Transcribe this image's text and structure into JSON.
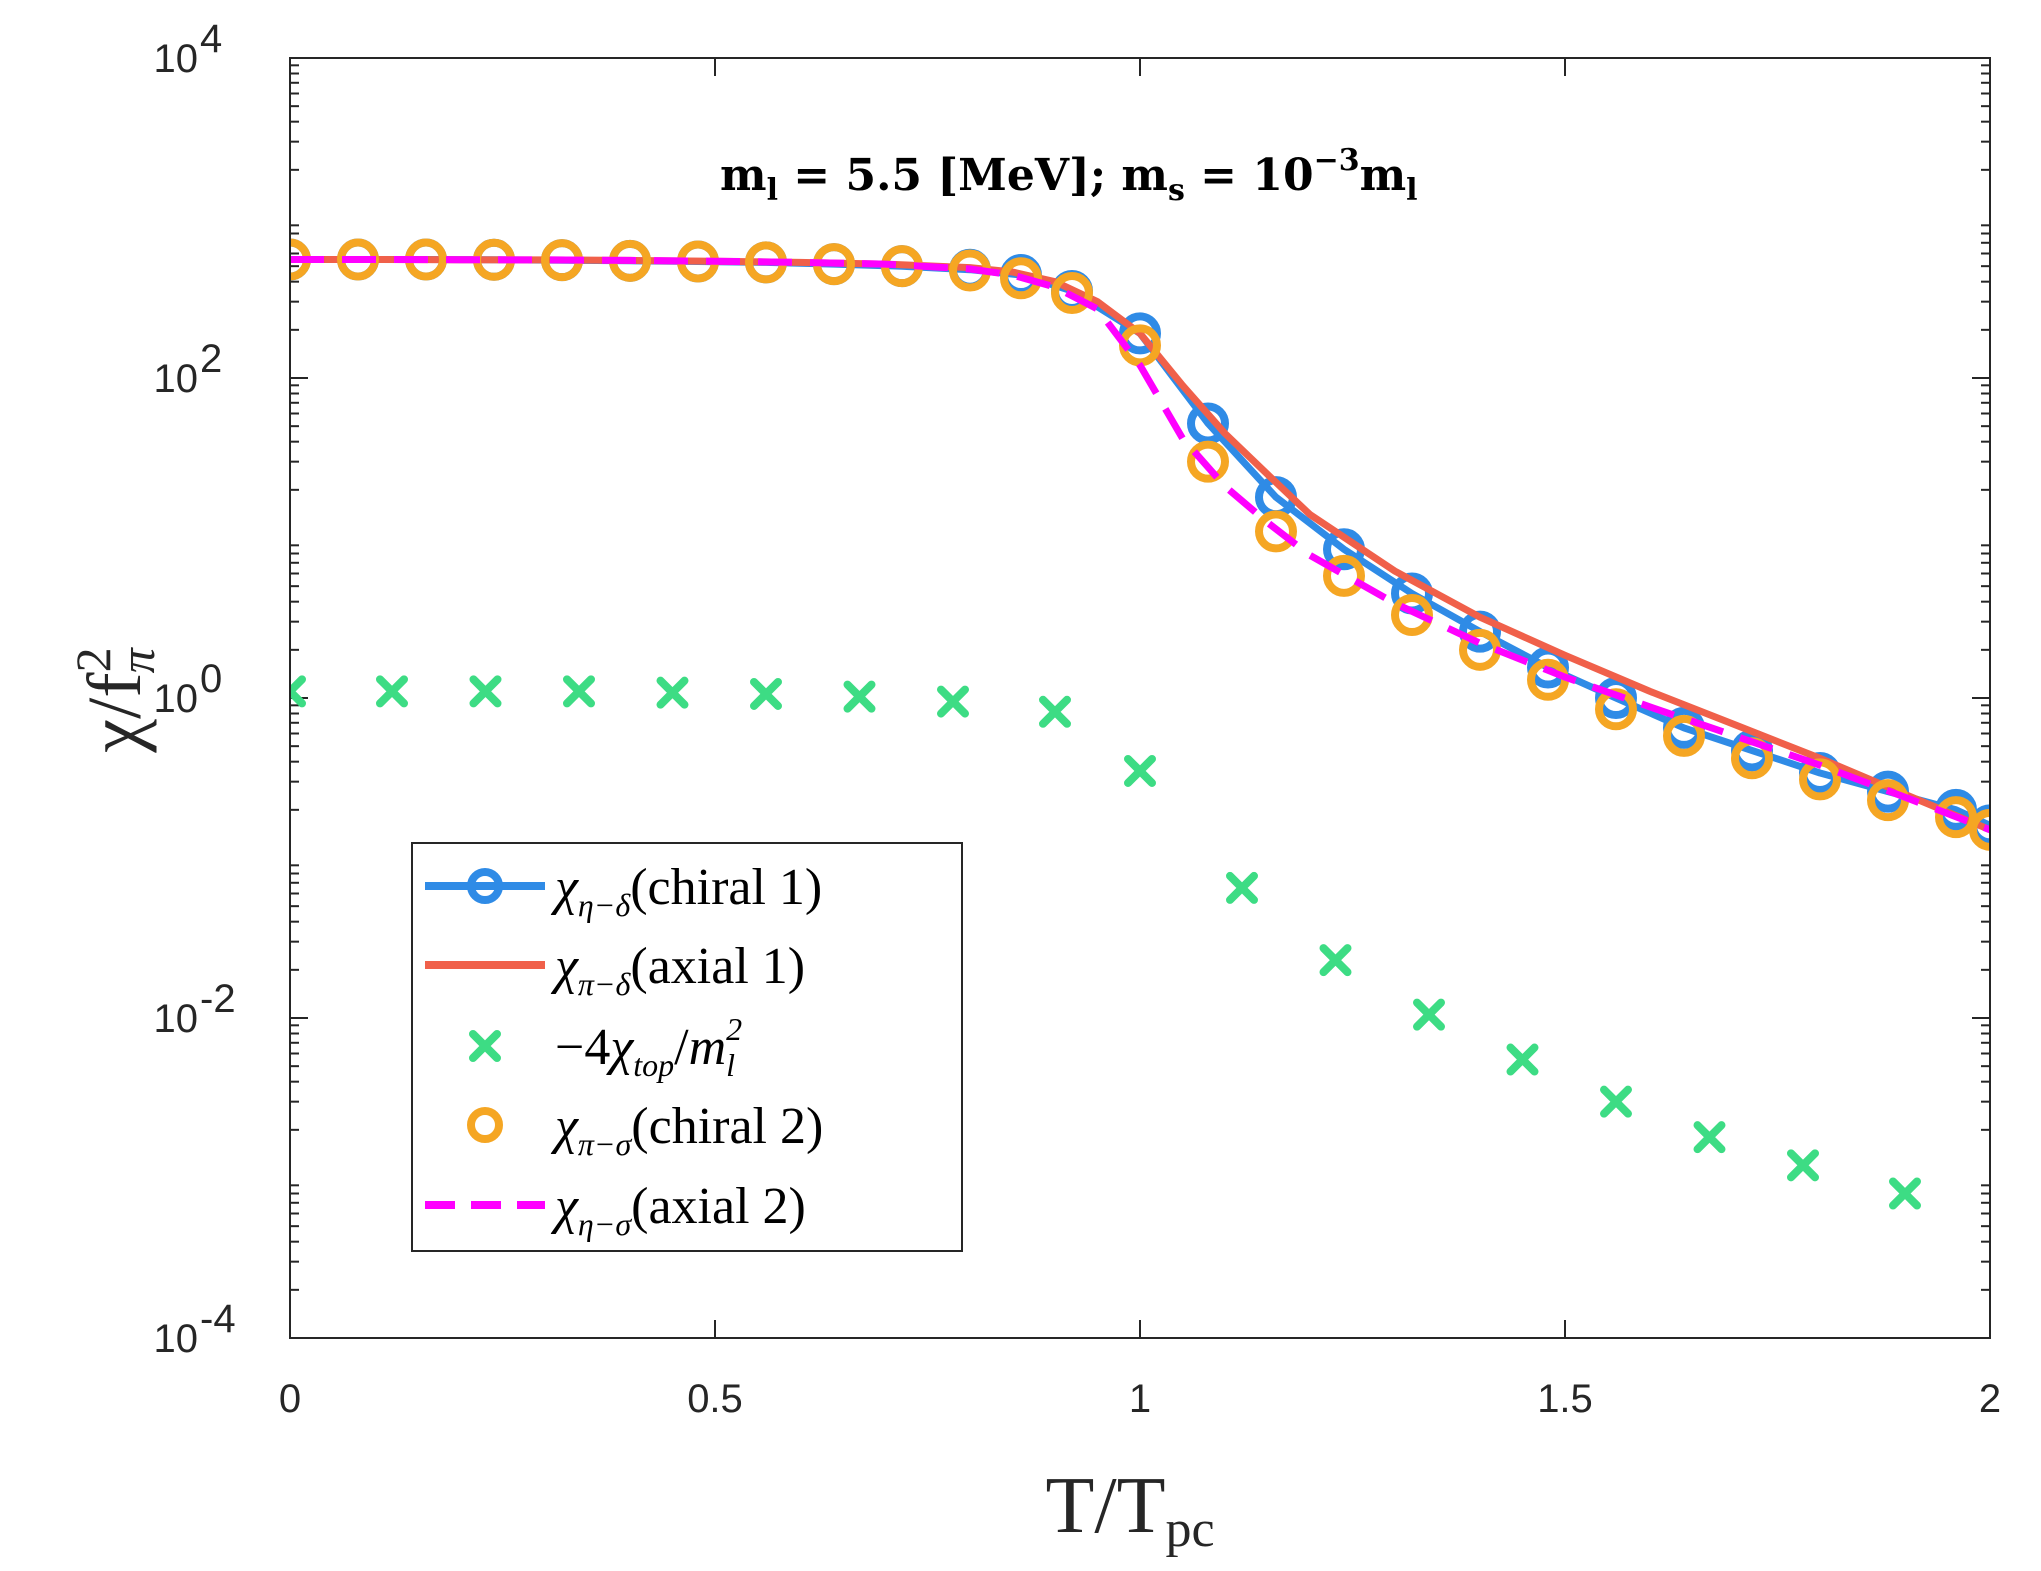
{
  "chart_data": {
    "type": "line",
    "title": "",
    "annotation": "m_l = 5.5 [MeV]; m_s = 10^-3 m_l",
    "annotation_parts": {
      "ml_base": "m",
      "ml_sub": "l",
      "eq1": " = 5.5 [MeV]; ",
      "ms_base": "m",
      "ms_sub": "s",
      "eq2": " = 10",
      "exp": "−3",
      "tail_base": "m",
      "tail_sub": "l"
    },
    "xlabel": {
      "base": "T/T",
      "sub": "pc"
    },
    "ylabel": {
      "base": "χ/f",
      "sup": "2",
      "sub": "π"
    },
    "xlim": [
      0,
      2
    ],
    "ylim_log10": [
      -4,
      4
    ],
    "yscale": "log",
    "xticks": [
      0,
      0.5,
      1,
      1.5,
      2
    ],
    "xtick_labels": [
      "0",
      "0.5",
      "1",
      "1.5",
      "2"
    ],
    "yticks_exp": [
      -4,
      -2,
      0,
      2,
      4
    ],
    "ytick_labels": [
      {
        "base": "10",
        "exp": "-4"
      },
      {
        "base": "10",
        "exp": "-2"
      },
      {
        "base": "10",
        "exp": "0"
      },
      {
        "base": "10",
        "exp": "2"
      },
      {
        "base": "10",
        "exp": "4"
      }
    ],
    "legend_position": "lower-left",
    "series": [
      {
        "name": "χη−δ(chiral 1)",
        "legend": {
          "chi": "χ",
          "sub": "η−δ",
          "rest": "(chiral 1)"
        },
        "style": "line-marker-circle",
        "color": "#2f8be6",
        "x": [
          0.0,
          0.08,
          0.16,
          0.24,
          0.32,
          0.4,
          0.48,
          0.56,
          0.64,
          0.72,
          0.8,
          0.86,
          0.92,
          1.0,
          1.08,
          1.16,
          1.24,
          1.32,
          1.4,
          1.48,
          1.56,
          1.64,
          1.72,
          1.8,
          1.88,
          1.96,
          2.0
        ],
        "y": [
          550,
          550,
          550,
          548,
          545,
          540,
          535,
          528,
          515,
          500,
          475,
          440,
          350,
          190,
          52,
          18,
          8.5,
          4.5,
          2.6,
          1.55,
          1.0,
          0.65,
          0.47,
          0.34,
          0.26,
          0.2,
          0.16
        ]
      },
      {
        "name": "χπ−δ(axial 1)",
        "legend": {
          "chi": "χ",
          "sub": "π−δ",
          "rest": "(axial 1)"
        },
        "style": "solid",
        "color": "#f0604a",
        "x": [
          0.0,
          0.1,
          0.2,
          0.3,
          0.4,
          0.5,
          0.6,
          0.7,
          0.8,
          0.85,
          0.9,
          0.95,
          1.0,
          1.05,
          1.1,
          1.15,
          1.2,
          1.3,
          1.4,
          1.5,
          1.6,
          1.7,
          1.8,
          1.9,
          2.0
        ],
        "y": [
          550,
          550,
          549,
          547,
          543,
          537,
          528,
          515,
          490,
          460,
          400,
          300,
          190,
          90,
          45,
          25,
          14,
          6.2,
          3.2,
          1.85,
          1.1,
          0.68,
          0.42,
          0.25,
          0.15
        ]
      },
      {
        "name": "−4χtop/m_l^2",
        "legend": {
          "pre": "−4",
          "chi": "χ",
          "sub": "top",
          "slash": "/",
          "m": "m",
          "msub": "l",
          "msup": "2"
        },
        "style": "marker-x",
        "color": "#3ddc84",
        "x": [
          0.0,
          0.12,
          0.23,
          0.34,
          0.45,
          0.56,
          0.67,
          0.78,
          0.9,
          1.0,
          1.12,
          1.23,
          1.34,
          1.45,
          1.56,
          1.67,
          1.78,
          1.9
        ],
        "y": [
          1.1,
          1.1,
          1.1,
          1.1,
          1.08,
          1.06,
          1.02,
          0.95,
          0.82,
          0.35,
          0.065,
          0.023,
          0.0105,
          0.0055,
          0.003,
          0.0018,
          0.0012,
          0.0008
        ]
      },
      {
        "name": "χπ−σ(chiral 2)",
        "legend": {
          "chi": "χ",
          "sub": "π−σ",
          "rest": "(chiral 2)"
        },
        "style": "marker-circle",
        "color": "#f5a623",
        "x": [
          0.0,
          0.08,
          0.16,
          0.24,
          0.32,
          0.4,
          0.48,
          0.56,
          0.64,
          0.72,
          0.8,
          0.86,
          0.92,
          1.0,
          1.08,
          1.16,
          1.24,
          1.32,
          1.4,
          1.48,
          1.56,
          1.64,
          1.72,
          1.8,
          1.88,
          1.96,
          2.0
        ],
        "y": [
          550,
          550,
          550,
          548,
          545,
          540,
          535,
          528,
          515,
          500,
          470,
          420,
          340,
          160,
          30,
          11,
          5.8,
          3.3,
          2.0,
          1.3,
          0.85,
          0.58,
          0.42,
          0.31,
          0.23,
          0.18,
          0.15
        ]
      },
      {
        "name": "χη−σ(axial 2)",
        "legend": {
          "chi": "χ",
          "sub": "η−σ",
          "rest": "(axial 2)"
        },
        "style": "dashed",
        "color": "#ff00ff",
        "x": [
          0.0,
          0.1,
          0.2,
          0.3,
          0.4,
          0.5,
          0.6,
          0.7,
          0.8,
          0.85,
          0.9,
          0.95,
          1.0,
          1.05,
          1.1,
          1.15,
          1.2,
          1.3,
          1.4,
          1.5,
          1.6,
          1.7,
          1.8,
          1.9,
          2.0
        ],
        "y": [
          550,
          550,
          549,
          547,
          543,
          537,
          528,
          515,
          480,
          440,
          370,
          270,
          120,
          42,
          21,
          12.5,
          7.8,
          3.9,
          2.2,
          1.35,
          0.88,
          0.58,
          0.38,
          0.24,
          0.15
        ]
      }
    ]
  }
}
